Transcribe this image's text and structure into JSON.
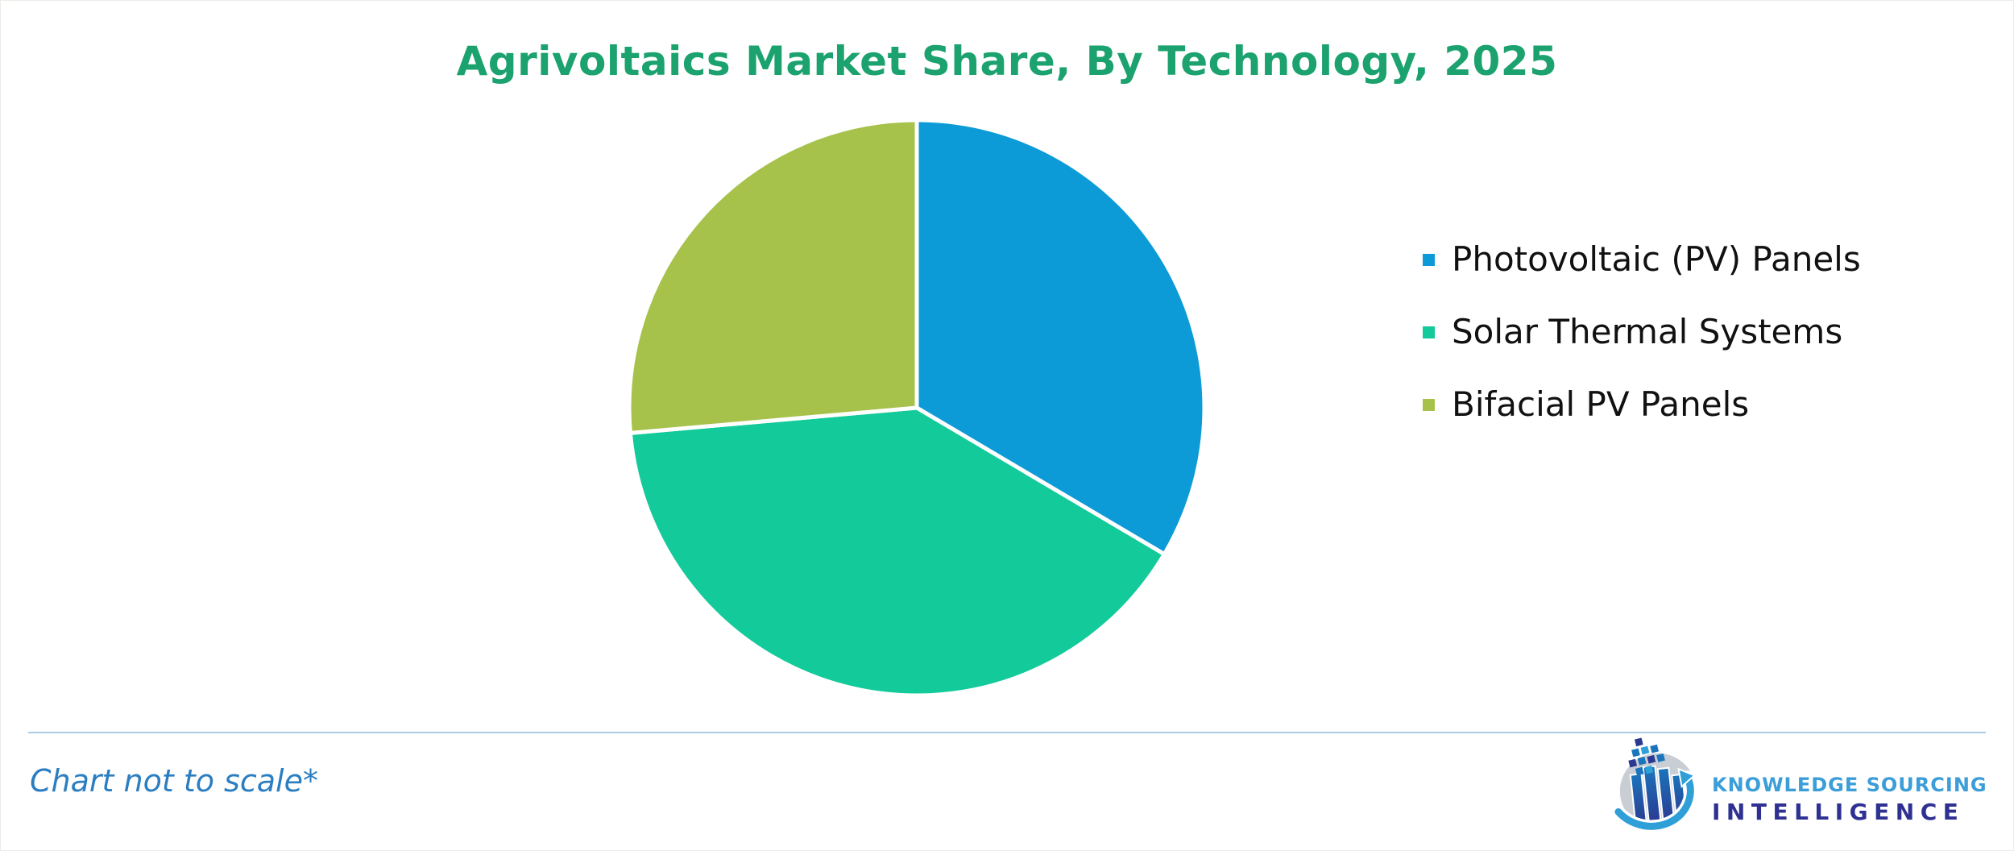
{
  "page": {
    "footnote": "Chart not to scale*"
  },
  "chart_data": {
    "type": "pie",
    "title": "Agrivoltaics Market Share, By Technology, 2025",
    "legend_position": "right",
    "labels_shown": false,
    "start_angle_deg": 0,
    "direction": "clockwise",
    "unit": "percent of total (approximate — chart not to scale)",
    "segments": [
      {
        "label": "Photovoltaic (PV) Panels",
        "value": 33.5,
        "angle_deg": 120.6,
        "color": "#0c9bd7"
      },
      {
        "label": "Solar Thermal Systems",
        "value": 40.1,
        "angle_deg": 144.4,
        "color": "#12ca9a"
      },
      {
        "label": "Bifacial PV Panels",
        "value": 26.4,
        "angle_deg": 95.0,
        "color": "#a6c24b"
      }
    ]
  },
  "branding": {
    "line1": "KNOWLEDGE SOURCING",
    "line2": "INTELLIGENCE"
  },
  "colors": {
    "title_green": "#1ba26f",
    "footnote_blue": "#2b7ec1",
    "divider_blue": "#a9cbe4",
    "legend_text": "#111111",
    "brand_light_blue": "#3b9ed8",
    "brand_navy": "#2e3192",
    "slice_separator": "#ffffff"
  }
}
